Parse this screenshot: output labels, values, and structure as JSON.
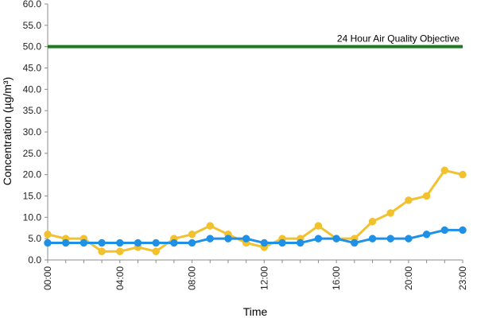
{
  "chart_data": {
    "type": "line",
    "title": "",
    "xlabel": "Time",
    "ylabel": "Concentration (µg/m³)",
    "ylim": [
      0,
      60
    ],
    "yticks": [
      "0.0",
      "5.0",
      "10.0",
      "15.0",
      "20.0",
      "25.0",
      "30.0",
      "35.0",
      "40.0",
      "45.0",
      "50.0",
      "55.0",
      "60.0"
    ],
    "xticks": [
      "00:00",
      "04:00",
      "08:00",
      "12:00",
      "16:00",
      "20:00",
      "23:00"
    ],
    "x": [
      "00:00",
      "01:00",
      "02:00",
      "03:00",
      "04:00",
      "05:00",
      "06:00",
      "07:00",
      "08:00",
      "09:00",
      "10:00",
      "11:00",
      "12:00",
      "13:00",
      "14:00",
      "15:00",
      "16:00",
      "17:00",
      "18:00",
      "19:00",
      "20:00",
      "21:00",
      "22:00",
      "23:00"
    ],
    "grid": false,
    "series": [
      {
        "color": "#f2c12e",
        "values": [
          6,
          5,
          5,
          2,
          2,
          3,
          2,
          5,
          6,
          8,
          6,
          4,
          3,
          5,
          5,
          8,
          5,
          5,
          9,
          11,
          14,
          15,
          21,
          20
        ]
      },
      {
        "color": "#1e90e6",
        "values": [
          4,
          4,
          4,
          4,
          4,
          4,
          4,
          4,
          4,
          5,
          5,
          5,
          4,
          4,
          4,
          5,
          5,
          4,
          5,
          5,
          5,
          6,
          7,
          7
        ]
      }
    ],
    "reference_line": {
      "label": "24 Hour Air Quality Objective",
      "value": 50,
      "color": "#1e7a1e"
    }
  }
}
